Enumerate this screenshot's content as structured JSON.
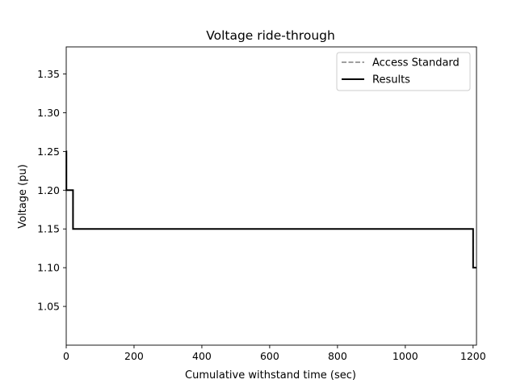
{
  "chart_data": {
    "type": "line",
    "title": "Voltage ride-through",
    "xlabel": "Cumulative withstand time (sec)",
    "ylabel": "Voltage (pu)",
    "xlim": [
      0,
      1210
    ],
    "ylim": [
      1.0,
      1.385
    ],
    "xticks": [
      0,
      200,
      400,
      600,
      800,
      1000,
      1200
    ],
    "xtick_labels": [
      "0",
      "200",
      "400",
      "600",
      "800",
      "1000",
      "1200"
    ],
    "yticks": [
      1.05,
      1.1,
      1.15,
      1.2,
      1.25,
      1.3,
      1.35
    ],
    "ytick_labels": [
      "1.05",
      "1.10",
      "1.15",
      "1.20",
      "1.25",
      "1.30",
      "1.35"
    ],
    "grid": false,
    "legend_position": "upper right",
    "series": [
      {
        "name": "Access Standard",
        "style": "dashed",
        "color": "#808080",
        "x": [
          0,
          0.5,
          0.5,
          20,
          20,
          1200,
          1200,
          1210
        ],
        "y": [
          1.25,
          1.25,
          1.2,
          1.2,
          1.15,
          1.15,
          1.1,
          1.1
        ]
      },
      {
        "name": "Results",
        "style": "solid",
        "color": "#000000",
        "x": [
          0,
          0.5,
          0.5,
          20,
          20,
          1200,
          1200,
          1210
        ],
        "y": [
          1.25,
          1.25,
          1.2,
          1.2,
          1.15,
          1.15,
          1.1,
          1.1
        ]
      }
    ]
  }
}
